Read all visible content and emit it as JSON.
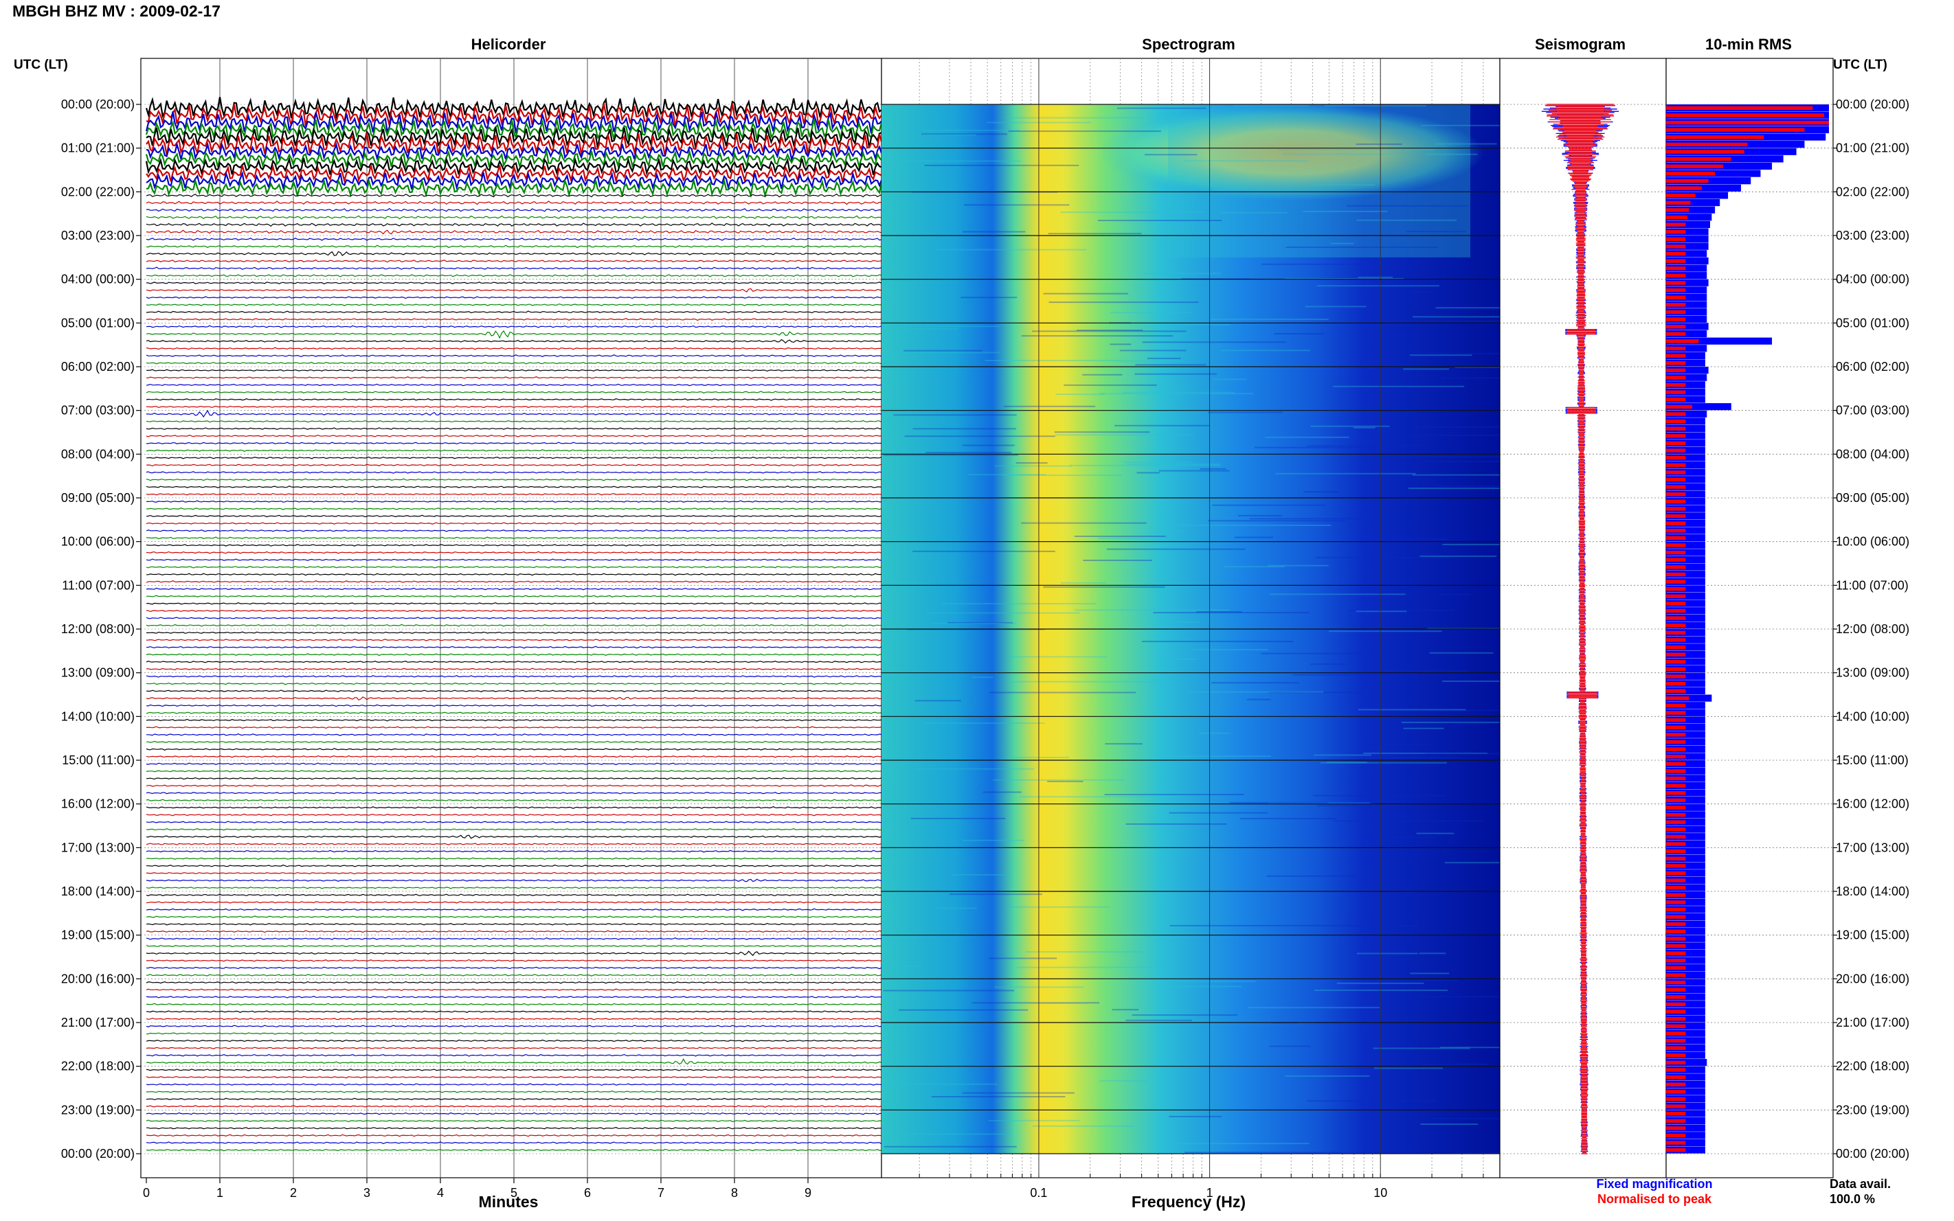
{
  "header": {
    "title": "MBGH BHZ MV : 2009-02-17"
  },
  "colors": {
    "trace_cycle": [
      "#000000",
      "#cc0000",
      "#0000cc",
      "#008800"
    ],
    "fixed_magnification": "#0000ff",
    "normalised_to_peak": "#ff0000",
    "spectrogram_low": "#00008b",
    "spectrogram_high": "#ffd000"
  },
  "chart_data": [
    {
      "type": "line",
      "panel": "helicorder",
      "title": "Helicorder",
      "xlabel": "Minutes",
      "left_axis_label": "UTC (LT)",
      "x": [
        0,
        1,
        2,
        3,
        4,
        5,
        6,
        7,
        8,
        9
      ],
      "xlim": [
        0,
        10
      ],
      "line_interval_minutes": 10,
      "hour_labels": [
        "00:00 (20:00)",
        "01:00 (21:00)",
        "02:00 (22:00)",
        "03:00 (23:00)",
        "04:00 (00:00)",
        "05:00 (01:00)",
        "06:00 (02:00)",
        "07:00 (03:00)",
        "08:00 (04:00)",
        "09:00 (05:00)",
        "10:00 (06:00)",
        "11:00 (07:00)",
        "12:00 (08:00)",
        "13:00 (09:00)",
        "14:00 (10:00)",
        "15:00 (11:00)",
        "16:00 (12:00)",
        "17:00 (13:00)",
        "18:00 (14:00)",
        "19:00 (15:00)",
        "20:00 (16:00)",
        "21:00 (17:00)",
        "22:00 (18:00)",
        "23:00 (19:00)",
        "00:00 (20:00)"
      ],
      "trace_amplitude_by_hour": [
        16,
        12,
        2.2,
        1.6,
        1.3,
        1.3,
        1.2,
        1.2,
        1.2,
        1.2,
        1.2,
        1.2,
        1.2,
        1.2,
        1.2,
        1.2,
        1.2,
        1.2,
        1.2,
        1.2,
        1.2,
        1.2,
        1.2,
        1.2
      ],
      "events": [
        {
          "hour": 2.9,
          "minute": 3.3,
          "strength": 4
        },
        {
          "hour": 3.3,
          "minute": 2.6,
          "strength": 5
        },
        {
          "hour": 4.2,
          "minute": 8.2,
          "strength": 3
        },
        {
          "hour": 5.2,
          "minute": 4.8,
          "strength": 9
        },
        {
          "hour": 5.25,
          "minute": 8.7,
          "strength": 4
        },
        {
          "hour": 7.0,
          "minute": 0.8,
          "strength": 6
        },
        {
          "hour": 7.0,
          "minute": 3.9,
          "strength": 3
        },
        {
          "hour": 13.5,
          "minute": 6.5,
          "strength": 3
        },
        {
          "hour": 13.55,
          "minute": 2.9,
          "strength": 3
        },
        {
          "hour": 16.65,
          "minute": 4.4,
          "strength": 4
        },
        {
          "hour": 17.7,
          "minute": 8.2,
          "strength": 3
        },
        {
          "hour": 19.3,
          "minute": 8.2,
          "strength": 4
        },
        {
          "hour": 21.8,
          "minute": 7.3,
          "strength": 5
        }
      ]
    },
    {
      "type": "heatmap",
      "panel": "spectrogram",
      "title": "Spectrogram",
      "xlabel": "Frequency (Hz)",
      "x_scale": "log",
      "xlim": [
        0.012,
        50
      ],
      "x_ticks": [
        {
          "value": 0.1,
          "label": "0.1"
        },
        {
          "value": 1,
          "label": "1"
        },
        {
          "value": 10,
          "label": "10"
        }
      ],
      "peak_frequency_hz": 0.3,
      "ylim_hours": [
        0,
        24
      ],
      "notes": "broadband energy 0-2h extending to ~20 Hz"
    },
    {
      "type": "line",
      "panel": "seismogram",
      "title": "Seismogram",
      "series": [
        {
          "name": "Fixed magnification",
          "color": "#0000ff"
        },
        {
          "name": "Normalised to peak",
          "color": "#ff0000"
        }
      ],
      "envelope_halfwidth_by_hour": [
        48,
        22,
        9,
        6,
        5,
        6,
        4,
        5,
        4,
        4,
        4,
        4,
        4,
        4,
        5,
        4,
        4,
        4,
        4,
        4,
        4,
        4,
        5,
        4
      ]
    },
    {
      "type": "bar",
      "panel": "rms",
      "title": "10-min RMS",
      "orientation": "horizontal",
      "bin_minutes": 10,
      "series": [
        {
          "name": "RMS",
          "color": "#0000ff",
          "values": [
            1.0,
            1.0,
            1.0,
            1.0,
            0.98,
            0.85,
            0.8,
            0.72,
            0.65,
            0.58,
            0.52,
            0.46,
            0.38,
            0.33,
            0.3,
            0.28,
            0.27,
            0.26,
            0.26,
            0.26,
            0.25,
            0.26,
            0.25,
            0.25,
            0.26,
            0.25,
            0.25,
            0.25,
            0.25,
            0.25,
            0.26,
            0.25,
            0.65,
            0.25,
            0.24,
            0.24,
            0.26,
            0.25,
            0.24,
            0.24,
            0.24,
            0.4,
            0.25,
            0.24,
            0.24,
            0.24,
            0.24,
            0.24,
            0.24,
            0.24,
            0.24,
            0.24,
            0.24,
            0.24,
            0.24,
            0.24,
            0.24,
            0.24,
            0.24,
            0.24,
            0.24,
            0.24,
            0.24,
            0.24,
            0.24,
            0.24,
            0.24,
            0.24,
            0.24,
            0.24,
            0.24,
            0.24,
            0.24,
            0.24,
            0.24,
            0.24,
            0.24,
            0.24,
            0.24,
            0.24,
            0.24,
            0.28,
            0.24,
            0.24,
            0.24,
            0.24,
            0.24,
            0.24,
            0.24,
            0.24,
            0.24,
            0.24,
            0.24,
            0.24,
            0.24,
            0.24,
            0.24,
            0.24,
            0.24,
            0.24,
            0.24,
            0.24,
            0.24,
            0.24,
            0.24,
            0.24,
            0.24,
            0.24,
            0.24,
            0.24,
            0.24,
            0.24,
            0.24,
            0.24,
            0.24,
            0.24,
            0.24,
            0.24,
            0.24,
            0.24,
            0.24,
            0.24,
            0.24,
            0.24,
            0.24,
            0.24,
            0.24,
            0.24,
            0.24,
            0.24,
            0.24,
            0.25,
            0.24,
            0.24,
            0.24,
            0.24,
            0.24,
            0.24,
            0.24,
            0.24,
            0.24,
            0.24,
            0.24,
            0.24
          ]
        },
        {
          "name": "peak",
          "color": "#ff0000",
          "values": [
            0.9,
            0.97,
            1.0,
            0.85,
            0.6,
            0.5,
            0.48,
            0.4,
            0.35,
            0.3,
            0.26,
            0.22,
            0.18,
            0.15,
            0.14,
            0.13,
            0.12,
            0.12,
            0.12,
            0.12,
            0.12,
            0.12,
            0.12,
            0.12,
            0.12,
            0.12,
            0.12,
            0.12,
            0.12,
            0.12,
            0.12,
            0.12,
            0.2,
            0.12,
            0.12,
            0.12,
            0.12,
            0.12,
            0.12,
            0.12,
            0.12,
            0.16,
            0.12,
            0.12,
            0.12,
            0.12,
            0.12,
            0.12,
            0.12,
            0.12,
            0.12,
            0.12,
            0.12,
            0.12,
            0.12,
            0.12,
            0.12,
            0.12,
            0.12,
            0.12,
            0.12,
            0.12,
            0.12,
            0.12,
            0.12,
            0.12,
            0.12,
            0.12,
            0.12,
            0.12,
            0.12,
            0.12,
            0.12,
            0.12,
            0.12,
            0.12,
            0.12,
            0.12,
            0.12,
            0.12,
            0.12,
            0.14,
            0.12,
            0.12,
            0.12,
            0.12,
            0.12,
            0.12,
            0.12,
            0.12,
            0.12,
            0.12,
            0.12,
            0.12,
            0.12,
            0.12,
            0.12,
            0.12,
            0.12,
            0.12,
            0.12,
            0.12,
            0.12,
            0.12,
            0.12,
            0.12,
            0.12,
            0.12,
            0.12,
            0.12,
            0.12,
            0.12,
            0.12,
            0.12,
            0.12,
            0.12,
            0.12,
            0.12,
            0.12,
            0.12,
            0.12,
            0.12,
            0.12,
            0.12,
            0.12,
            0.12,
            0.12,
            0.12,
            0.12,
            0.12,
            0.12,
            0.12,
            0.12,
            0.12,
            0.12,
            0.12,
            0.12,
            0.12,
            0.12,
            0.12,
            0.12,
            0.12,
            0.12,
            0.12
          ]
        }
      ],
      "right_axis_label": "UTC (LT)"
    }
  ],
  "legend": {
    "fixed_magnification": "Fixed magnification",
    "normalised_to_peak": "Normalised to peak"
  },
  "footer": {
    "data_avail_label": "Data avail.",
    "data_avail_value": "100.0 %"
  }
}
